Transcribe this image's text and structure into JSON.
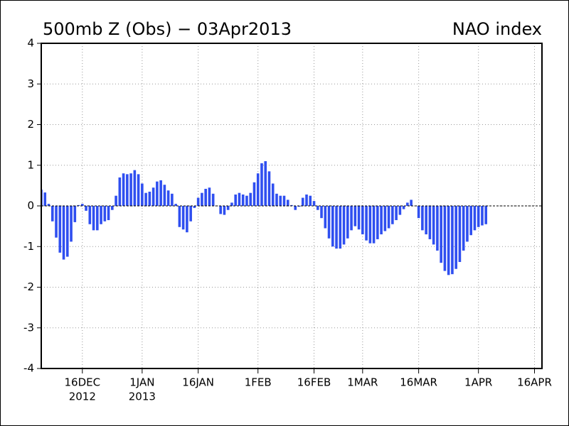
{
  "chart_data": {
    "type": "bar",
    "title": "500mb Z (Obs) − 03Apr2013",
    "subtitle": "NAO index",
    "x": [
      "2012-12-05",
      "2012-12-06",
      "2012-12-07",
      "2012-12-08",
      "2012-12-09",
      "2012-12-10",
      "2012-12-11",
      "2012-12-12",
      "2012-12-13",
      "2012-12-14",
      "2012-12-15",
      "2012-12-16",
      "2012-12-17",
      "2012-12-18",
      "2012-12-19",
      "2012-12-20",
      "2012-12-21",
      "2012-12-22",
      "2012-12-23",
      "2012-12-24",
      "2012-12-25",
      "2012-12-26",
      "2012-12-27",
      "2012-12-28",
      "2012-12-29",
      "2012-12-30",
      "2012-12-31",
      "2013-01-01",
      "2013-01-02",
      "2013-01-03",
      "2013-01-04",
      "2013-01-05",
      "2013-01-06",
      "2013-01-07",
      "2013-01-08",
      "2013-01-09",
      "2013-01-10",
      "2013-01-11",
      "2013-01-12",
      "2013-01-13",
      "2013-01-14",
      "2013-01-15",
      "2013-01-16",
      "2013-01-17",
      "2013-01-18",
      "2013-01-19",
      "2013-01-20",
      "2013-01-21",
      "2013-01-22",
      "2013-01-23",
      "2013-01-24",
      "2013-01-25",
      "2013-01-26",
      "2013-01-27",
      "2013-01-28",
      "2013-01-29",
      "2013-01-30",
      "2013-01-31",
      "2013-02-01",
      "2013-02-02",
      "2013-02-03",
      "2013-02-04",
      "2013-02-05",
      "2013-02-06",
      "2013-02-07",
      "2013-02-08",
      "2013-02-09",
      "2013-02-10",
      "2013-02-11",
      "2013-02-12",
      "2013-02-13",
      "2013-02-14",
      "2013-02-15",
      "2013-02-16",
      "2013-02-17",
      "2013-02-18",
      "2013-02-19",
      "2013-02-20",
      "2013-02-21",
      "2013-02-22",
      "2013-02-23",
      "2013-02-24",
      "2013-02-25",
      "2013-02-26",
      "2013-02-27",
      "2013-02-28",
      "2013-03-01",
      "2013-03-02",
      "2013-03-03",
      "2013-03-04",
      "2013-03-05",
      "2013-03-06",
      "2013-03-07",
      "2013-03-08",
      "2013-03-09",
      "2013-03-10",
      "2013-03-11",
      "2013-03-12",
      "2013-03-13",
      "2013-03-14",
      "2013-03-15",
      "2013-03-16",
      "2013-03-17",
      "2013-03-18",
      "2013-03-19",
      "2013-03-20",
      "2013-03-21",
      "2013-03-22",
      "2013-03-23",
      "2013-03-24",
      "2013-03-25",
      "2013-03-26",
      "2013-03-27",
      "2013-03-28",
      "2013-03-29",
      "2013-03-30",
      "2013-03-31",
      "2013-04-01",
      "2013-04-02",
      "2013-04-03"
    ],
    "values": [
      0.4,
      0.33,
      0.05,
      -0.38,
      -0.78,
      -1.15,
      -1.32,
      -1.25,
      -0.88,
      -0.4,
      0.02,
      0.05,
      -0.12,
      -0.45,
      -0.6,
      -0.6,
      -0.45,
      -0.38,
      -0.35,
      -0.1,
      0.25,
      0.7,
      0.8,
      0.78,
      0.8,
      0.88,
      0.78,
      0.55,
      0.32,
      0.35,
      0.45,
      0.6,
      0.63,
      0.52,
      0.38,
      0.3,
      0.05,
      -0.52,
      -0.58,
      -0.65,
      -0.38,
      -0.05,
      0.2,
      0.32,
      0.42,
      0.45,
      0.3,
      0.0,
      -0.2,
      -0.22,
      -0.1,
      0.08,
      0.28,
      0.32,
      0.28,
      0.25,
      0.32,
      0.58,
      0.8,
      1.05,
      1.1,
      0.85,
      0.55,
      0.3,
      0.25,
      0.25,
      0.15,
      0.02,
      -0.1,
      -0.02,
      0.2,
      0.28,
      0.25,
      0.12,
      -0.1,
      -0.3,
      -0.55,
      -0.8,
      -1.0,
      -1.05,
      -1.05,
      -0.95,
      -0.8,
      -0.6,
      -0.5,
      -0.58,
      -0.7,
      -0.85,
      -0.92,
      -0.92,
      -0.82,
      -0.7,
      -0.62,
      -0.55,
      -0.45,
      -0.35,
      -0.22,
      -0.08,
      0.08,
      0.15,
      0,
      -0.3,
      -0.6,
      -0.7,
      -0.82,
      -0.95,
      -1.1,
      -1.4,
      -1.6,
      -1.7,
      -1.68,
      -1.55,
      -1.38,
      -1.1,
      -0.88,
      -0.72,
      -0.6,
      -0.52,
      -0.48,
      -0.45
    ],
    "color": "#2f4ff0",
    "xlim": [
      "2012-12-05",
      "2013-04-18"
    ],
    "xticks": [
      {
        "value": "2012-12-16",
        "label": "16DEC",
        "sublabel": "2012"
      },
      {
        "value": "2013-01-01",
        "label": "1JAN",
        "sublabel": "2013"
      },
      {
        "value": "2013-01-16",
        "label": "16JAN"
      },
      {
        "value": "2013-02-01",
        "label": "1FEB"
      },
      {
        "value": "2013-02-16",
        "label": "16FEB"
      },
      {
        "value": "2013-03-01",
        "label": "1MAR"
      },
      {
        "value": "2013-03-16",
        "label": "16MAR"
      },
      {
        "value": "2013-04-01",
        "label": "1APR"
      },
      {
        "value": "2013-04-16",
        "label": "16APR"
      }
    ],
    "ylim": [
      -4,
      4
    ],
    "yticks": [
      -4,
      -3,
      -2,
      -1,
      0,
      1,
      2,
      3,
      4
    ],
    "grid": true
  }
}
